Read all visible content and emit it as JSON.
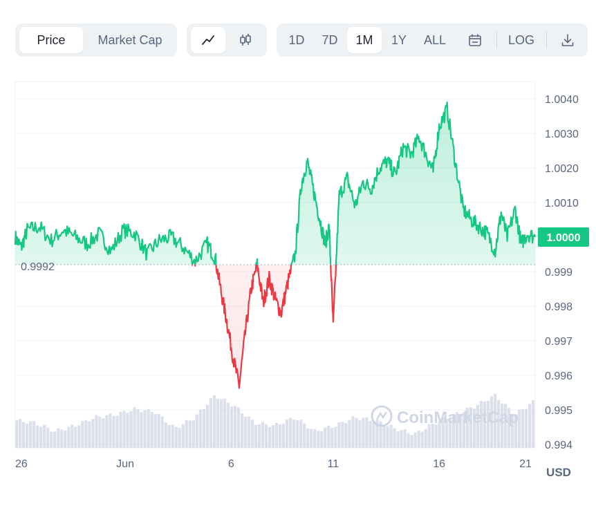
{
  "toolbar": {
    "data_tabs": [
      {
        "label": "Price",
        "active": true
      },
      {
        "label": "Market Cap",
        "active": false
      }
    ],
    "chart_type": [
      {
        "icon": "line-chart-icon",
        "active": true
      },
      {
        "icon": "candlestick-icon",
        "active": false
      }
    ],
    "ranges": [
      {
        "label": "1D",
        "active": false
      },
      {
        "label": "7D",
        "active": false
      },
      {
        "label": "1M",
        "active": true
      },
      {
        "label": "1Y",
        "active": false
      },
      {
        "label": "ALL",
        "active": false
      }
    ],
    "calendar_icon": "calendar-icon",
    "log_label": "LOG",
    "download_icon": "download-icon"
  },
  "watermark": "CoinMarketCap",
  "colors": {
    "up": "#16c784",
    "down": "#ea3943",
    "grid": "#eff2f5",
    "volume": "#cfd6e4",
    "label": "#58667e"
  },
  "chart_data": {
    "type": "line",
    "x_tick_labels": [
      "26",
      "Jun",
      "6",
      "11",
      "16",
      "21"
    ],
    "y_tick_labels": [
      "1.0040",
      "1.0030",
      "1.0020",
      "1.0010",
      "0.999",
      "0.998",
      "0.997",
      "0.996",
      "0.995",
      "0.994"
    ],
    "ylim": [
      0.9939,
      1.0045
    ],
    "baseline": 0.9992,
    "baseline_label": "0.9992",
    "current_price": 1.0,
    "current_price_label": "1.0000",
    "currency_label": "USD",
    "grid": true,
    "series": [
      {
        "x": [
          0,
          0.3,
          0.6,
          1.2,
          1.8,
          2.4,
          3,
          3.6,
          4.2,
          4.8,
          5.4,
          6,
          6.6,
          7.2,
          7.8,
          8.4,
          9,
          9.6,
          10,
          10.3,
          10.6,
          10.9,
          11.2,
          11.5,
          11.8,
          12.1,
          12.4,
          12.7,
          13,
          13.3,
          13.6,
          14,
          14.3,
          14.6,
          14.9,
          15.2,
          15.5,
          15.7,
          15.9,
          16.2,
          16.6,
          17,
          17.4,
          17.8,
          18.2,
          18.6,
          19,
          19.4,
          19.8,
          20.2,
          20.6,
          20.9,
          21.2,
          21.6,
          22,
          22.4,
          22.8,
          23.2,
          23.6,
          24,
          24.3,
          24.6,
          25,
          25.3,
          25.6,
          26
        ],
        "y": [
          1.0,
          0.9997,
          1.0002,
          1.0003,
          0.9999,
          1.0002,
          1.0,
          0.9998,
          1.0001,
          0.9996,
          1.0002,
          1.0001,
          0.9995,
          0.9999,
          1.0,
          0.9997,
          0.9993,
          0.9998,
          0.9994,
          0.9984,
          0.9975,
          0.9965,
          0.9957,
          0.9972,
          0.9985,
          0.9992,
          0.9981,
          0.9988,
          0.9982,
          0.9978,
          0.9986,
          0.9995,
          1.0015,
          1.0022,
          1.0014,
          1.0006,
          0.9998,
          1.0003,
          0.9974,
          1.0012,
          1.0017,
          1.0009,
          1.0016,
          1.0014,
          1.002,
          1.0022,
          1.0018,
          1.0026,
          1.0024,
          1.0029,
          1.0023,
          1.0019,
          1.0032,
          1.0037,
          1.0022,
          1.0008,
          1.0005,
          1.0003,
          1.0001,
          0.9996,
          1.0007,
          1.0,
          1.0008,
          0.9998,
          1.0001,
          1.0
        ]
      }
    ],
    "volume": {
      "x": [
        0,
        1,
        2,
        3,
        4,
        5,
        6,
        7,
        8,
        9,
        10,
        11,
        12,
        13,
        14,
        15,
        16,
        17,
        18,
        19,
        20,
        21,
        22,
        23,
        24,
        25,
        26
      ],
      "values": [
        0.5,
        0.45,
        0.3,
        0.4,
        0.55,
        0.6,
        0.7,
        0.65,
        0.35,
        0.55,
        0.95,
        0.75,
        0.45,
        0.4,
        0.55,
        0.3,
        0.4,
        0.55,
        0.5,
        0.35,
        0.25,
        0.45,
        0.6,
        0.75,
        0.95,
        0.6,
        0.85
      ]
    }
  }
}
